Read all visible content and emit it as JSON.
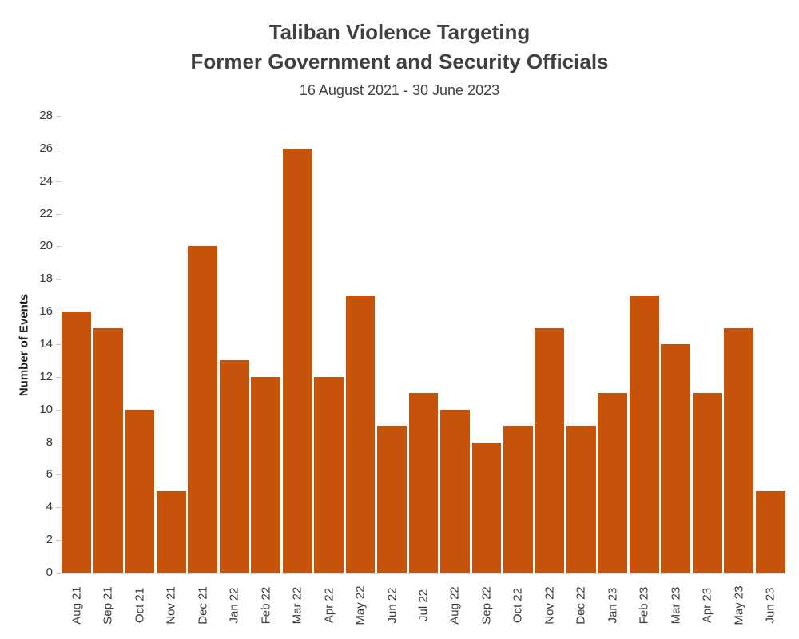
{
  "title": {
    "line1": "Taliban Violence Targeting",
    "line2": "Former Government and Security Officials"
  },
  "subtitle": "16 August 2021 - 30 June 2023",
  "chart_data": {
    "type": "bar",
    "title": "Taliban Violence Targeting Former Government and Security Officials",
    "subtitle": "16 August 2021 - 30 June 2023",
    "categories": [
      "Aug 21",
      "Sep 21",
      "Oct 21",
      "Nov 21",
      "Dec 21",
      "Jan 22",
      "Feb 22",
      "Mar 22",
      "Apr 22",
      "May 22",
      "Jun 22",
      "Jul 22",
      "Aug 22",
      "Sep 22",
      "Oct 22",
      "Nov 22",
      "Dec 22",
      "Jan 23",
      "Feb 23",
      "Mar 23",
      "Apr 23",
      "May 23",
      "Jun 23"
    ],
    "values": [
      16,
      15,
      10,
      5,
      20,
      13,
      12,
      26,
      12,
      17,
      9,
      11,
      10,
      8,
      9,
      15,
      9,
      11,
      17,
      14,
      11,
      15,
      5
    ],
    "xlabel": "",
    "ylabel": "Number of Events",
    "ylim": [
      0,
      28
    ],
    "ytick_step": 2,
    "yticks": [
      0,
      2,
      4,
      6,
      8,
      10,
      12,
      14,
      16,
      18,
      20,
      22,
      24,
      26,
      28
    ],
    "grid": false,
    "legend": false,
    "bar_color": "#C5530A"
  },
  "colors": {
    "bar": "#C5530A",
    "title_text": "#404040",
    "axis_text": "#3A3A3A",
    "tick_mark": "#C8C8C8",
    "axis_line": "#DDDDDD",
    "background": "#FFFFFF"
  }
}
